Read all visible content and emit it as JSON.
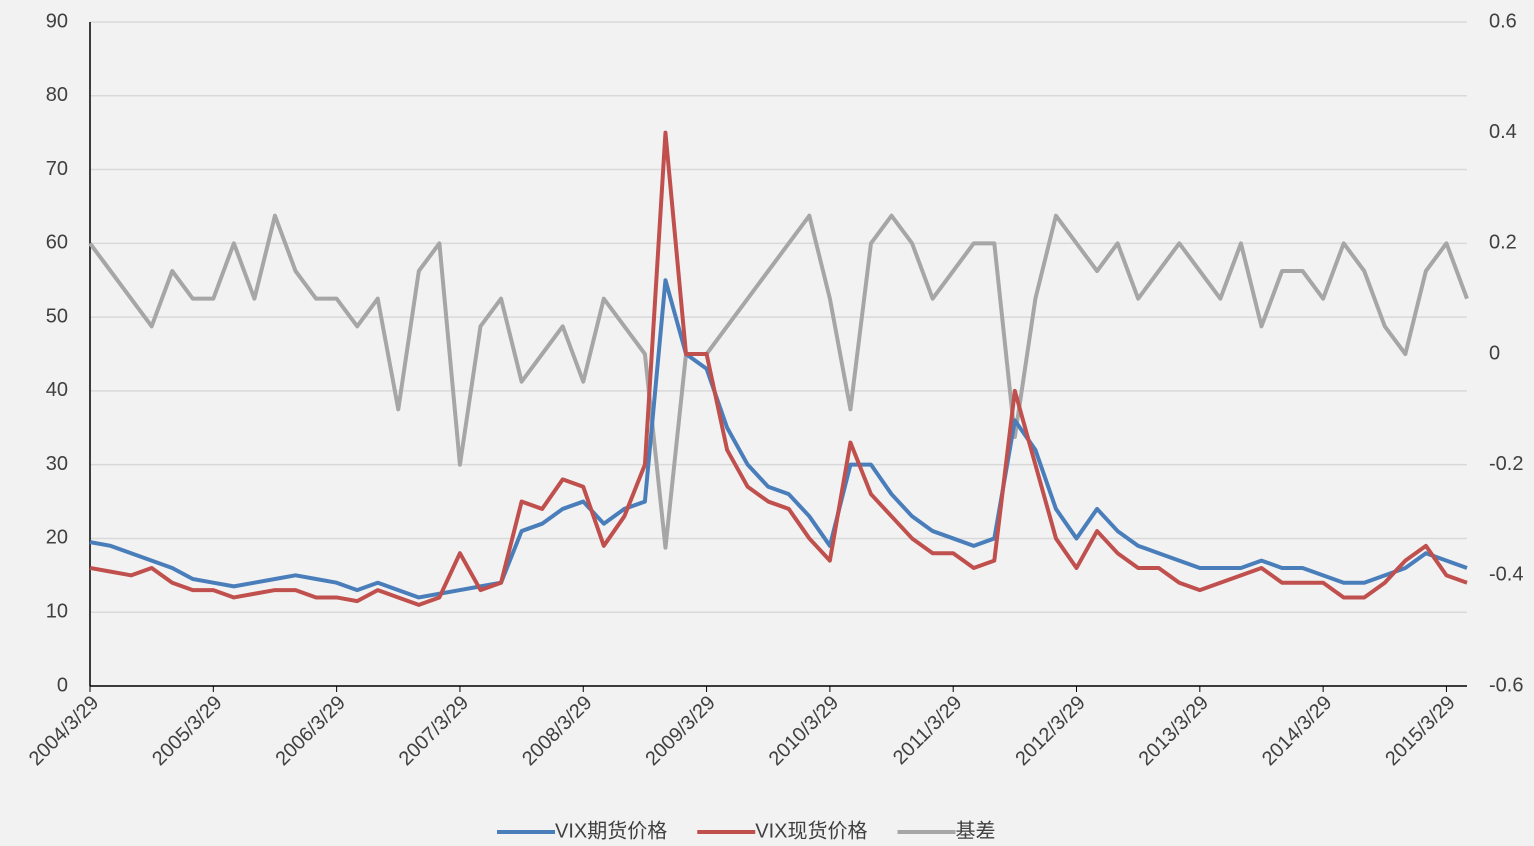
{
  "chart_data": {
    "type": "line",
    "categories": [
      "2004/3/29",
      null,
      null,
      null,
      null,
      null,
      "2005/3/29",
      null,
      null,
      null,
      null,
      null,
      "2006/3/29",
      null,
      null,
      null,
      null,
      null,
      "2007/3/29",
      null,
      null,
      null,
      null,
      null,
      "2008/3/29",
      null,
      null,
      null,
      null,
      null,
      "2009/3/29",
      null,
      null,
      null,
      null,
      null,
      "2010/3/29",
      null,
      null,
      null,
      null,
      null,
      "2011/3/29",
      null,
      null,
      null,
      null,
      null,
      "2012/3/29",
      null,
      null,
      null,
      null,
      null,
      "2013/3/29",
      null,
      null,
      null,
      null,
      null,
      "2014/3/29",
      null,
      null,
      null,
      null,
      null,
      "2015/3/29",
      null
    ],
    "series": [
      {
        "name": "VIX期货价格",
        "color": "#4a7ebb",
        "values": [
          19.5,
          19,
          18,
          17,
          16,
          14.5,
          14,
          13.5,
          14,
          14.5,
          15,
          14.5,
          14,
          13,
          14,
          13,
          12,
          12.5,
          13,
          13.5,
          14,
          21,
          22,
          24,
          25,
          22,
          24,
          25,
          55,
          45,
          43,
          35,
          30,
          27,
          26,
          23,
          19,
          30,
          30,
          26,
          23,
          21,
          20,
          19,
          20,
          36,
          32,
          24,
          20,
          24,
          21,
          19,
          18,
          17,
          16,
          16,
          16,
          17,
          16,
          16,
          15,
          14,
          14,
          15,
          16,
          18,
          17,
          16
        ]
      },
      {
        "name": "VIX现货价格",
        "color": "#c0504d",
        "values": [
          16,
          15.5,
          15,
          16,
          14,
          13,
          13,
          12,
          12.5,
          13,
          13,
          12,
          12,
          11.5,
          13,
          12,
          11,
          12,
          18,
          13,
          14,
          25,
          24,
          28,
          27,
          19,
          23,
          30,
          75,
          45,
          45,
          32,
          27,
          25,
          24,
          20,
          17,
          33,
          26,
          23,
          20,
          18,
          18,
          16,
          17,
          40,
          30,
          20,
          16,
          21,
          18,
          16,
          16,
          14,
          13,
          14,
          15,
          16,
          14,
          14,
          14,
          12,
          12,
          14,
          17,
          19,
          15,
          14
        ]
      },
      {
        "name": "基差",
        "color": "#a6a6a6",
        "axis": "y2",
        "values": [
          0.2,
          0.15,
          0.1,
          0.05,
          0.15,
          0.1,
          0.1,
          0.2,
          0.1,
          0.25,
          0.15,
          0.1,
          0.1,
          0.05,
          0.1,
          -0.1,
          0.15,
          0.2,
          -0.2,
          0.05,
          0.1,
          -0.05,
          0,
          0.05,
          -0.05,
          0.1,
          0.05,
          0,
          -0.35,
          0,
          0,
          0.05,
          0.1,
          0.15,
          0.2,
          0.25,
          0.1,
          -0.1,
          0.2,
          0.25,
          0.2,
          0.1,
          0.15,
          0.2,
          0.2,
          -0.15,
          0.1,
          0.25,
          0.2,
          0.15,
          0.2,
          0.1,
          0.15,
          0.2,
          0.15,
          0.1,
          0.2,
          0.05,
          0.15,
          0.15,
          0.1,
          0.2,
          0.15,
          0.05,
          0,
          0.15,
          0.2,
          0.1
        ]
      }
    ],
    "ylim": [
      0,
      90
    ],
    "yticks": [
      0,
      10,
      20,
      30,
      40,
      50,
      60,
      70,
      80,
      90
    ],
    "y2lim": [
      -0.6,
      0.6
    ],
    "y2ticks": [
      -0.6,
      -0.4,
      -0.2,
      0,
      0.2,
      0.4,
      0.6
    ],
    "grid": true,
    "legend": "bottom"
  }
}
